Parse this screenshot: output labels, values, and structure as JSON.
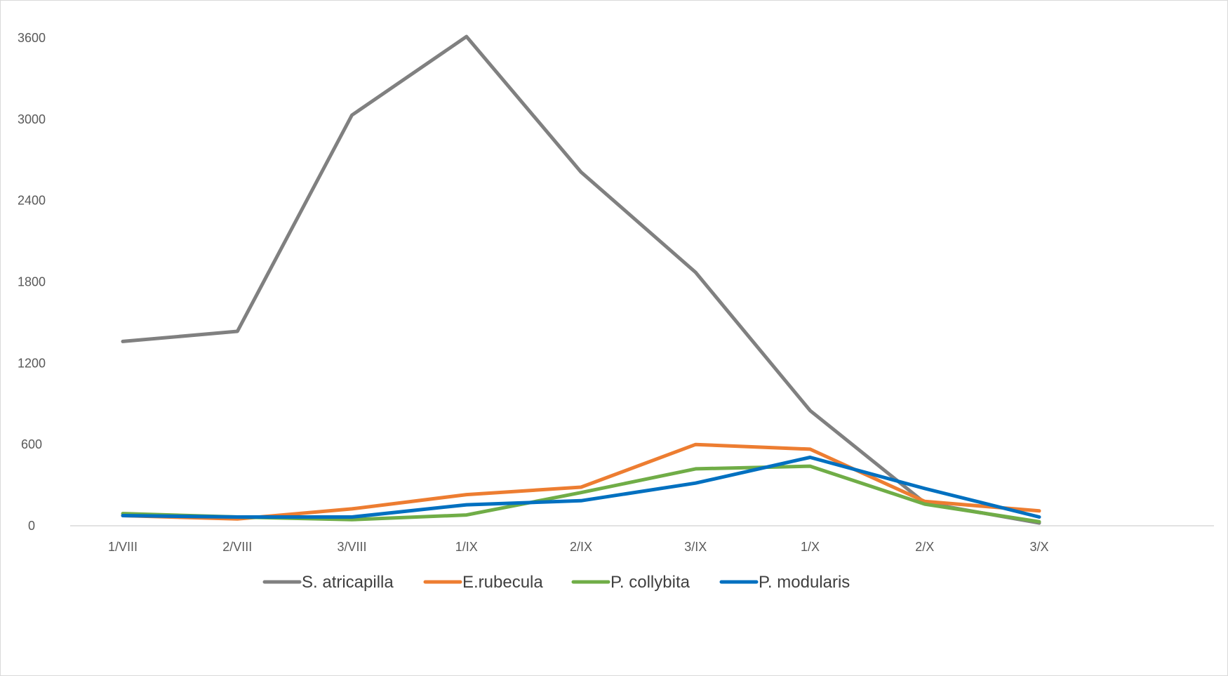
{
  "chart_data": {
    "type": "line",
    "title": "",
    "xlabel": "",
    "ylabel": "",
    "categories": [
      "1/VIII",
      "2/VIII",
      "3/VIII",
      "1/IX",
      "2/IX",
      "3/IX",
      "1/X",
      "2/X",
      "3/X"
    ],
    "ylim": [
      0,
      3600
    ],
    "yticks": [
      0,
      600,
      1200,
      1800,
      2400,
      3000,
      3600
    ],
    "yticklabels": [
      "0",
      "600",
      "1200",
      "1800",
      "2400",
      "3000",
      "3600"
    ],
    "grid": false,
    "legend_position": "bottom",
    "series": [
      {
        "name": "S. atricapilla",
        "color": "#808080",
        "values": [
          1360,
          1435,
          3030,
          3610,
          2610,
          1870,
          850,
          170,
          20
        ]
      },
      {
        "name": "E.rubecula",
        "color": "#ED7D31",
        "values": [
          75,
          50,
          125,
          230,
          285,
          600,
          565,
          180,
          110
        ]
      },
      {
        "name": "P. collybita",
        "color": "#70AD47",
        "values": [
          90,
          65,
          45,
          80,
          245,
          420,
          440,
          160,
          30
        ]
      },
      {
        "name": "P. modularis",
        "color": "#0070C0",
        "values": [
          75,
          65,
          65,
          155,
          185,
          315,
          505,
          275,
          65
        ]
      }
    ]
  }
}
